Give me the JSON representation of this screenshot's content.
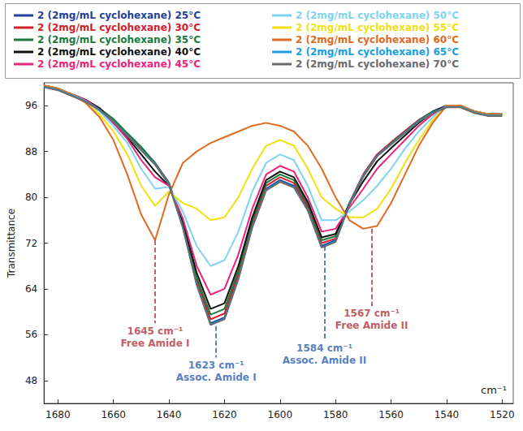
{
  "chart_data": {
    "type": "line",
    "xlabel": "cm⁻¹",
    "ylabel": "Transmittance",
    "x": [
      1685,
      1680,
      1675,
      1670,
      1665,
      1660,
      1655,
      1650,
      1645,
      1640,
      1635,
      1630,
      1625,
      1620,
      1615,
      1610,
      1605,
      1600,
      1595,
      1590,
      1585,
      1580,
      1575,
      1570,
      1565,
      1560,
      1555,
      1550,
      1545,
      1540,
      1535,
      1530,
      1525,
      1520
    ],
    "series": [
      {
        "name": "2 (2mg/mL cyclohexane) 25°C",
        "color": "#1f3f9a",
        "values": [
          99.5,
          99,
          98,
          97,
          95.5,
          93.5,
          91,
          88.5,
          86,
          82.5,
          75,
          65,
          58,
          59,
          66,
          75,
          81.5,
          83,
          82,
          78,
          71.5,
          72.5,
          79,
          84,
          87.5,
          89.5,
          91.5,
          93.5,
          95,
          96,
          96,
          95,
          94.5,
          94.5
        ]
      },
      {
        "name": "2 (2mg/mL cyclohexane) 30°C",
        "color": "#d0202a",
        "values": [
          99.5,
          99,
          98,
          97,
          95.5,
          93.6,
          91.1,
          88.6,
          86,
          82.5,
          75.3,
          65.5,
          58.7,
          59.7,
          66.6,
          75.5,
          82,
          83.5,
          82.5,
          78.4,
          72,
          72.8,
          79,
          84,
          87.5,
          89.6,
          91.6,
          93.5,
          95,
          96,
          96,
          95,
          94.5,
          94.5
        ]
      },
      {
        "name": "2 (2mg/mL cyclohexane) 35°C",
        "color": "#1a7a3a",
        "values": [
          99.5,
          99,
          98,
          97,
          95.5,
          93.7,
          91.2,
          88.8,
          86,
          82.4,
          75.5,
          66,
          59.5,
          60.5,
          67.2,
          76,
          82.5,
          84,
          83,
          78.8,
          72.5,
          73.2,
          79,
          83.6,
          87.2,
          89.4,
          91.4,
          93.4,
          95,
          96,
          96,
          95,
          94.5,
          94.5
        ]
      },
      {
        "name": "2 (2mg/mL cyclohexane) 40°C",
        "color": "#111111",
        "values": [
          99.5,
          99,
          98,
          97,
          95.6,
          93,
          90.5,
          87.5,
          84.5,
          82,
          75.8,
          66.8,
          60.5,
          61.5,
          68,
          76.5,
          83,
          84.5,
          83.5,
          79.2,
          73,
          73.6,
          78.8,
          82.8,
          86.3,
          88.6,
          90.8,
          93,
          94.8,
          96,
          96,
          95,
          94.5,
          94.5
        ]
      },
      {
        "name": "2 (2mg/mL cyclohexane) 45°C",
        "color": "#e8247a",
        "values": [
          99.5,
          99,
          98,
          97,
          95.3,
          93,
          90.2,
          86.5,
          83.5,
          82,
          76.3,
          68,
          63,
          64,
          70,
          78,
          84,
          85.5,
          84.5,
          80,
          74,
          74.5,
          78.2,
          81.5,
          85,
          87.5,
          90,
          92.5,
          94.5,
          96,
          96,
          95,
          94.5,
          94.5
        ]
      },
      {
        "name": "2 (2mg/mL cyclohexane) 50°C",
        "color": "#7fd3f0",
        "values": [
          99.5,
          99,
          98,
          96.8,
          95,
          92.5,
          89.5,
          85,
          81.5,
          81.8,
          77.5,
          71.5,
          68,
          69,
          74,
          81,
          86,
          87.5,
          86.5,
          82,
          76,
          76,
          77.5,
          79.5,
          82,
          85,
          88.5,
          91.5,
          94,
          96,
          96,
          95,
          94.5,
          94.5
        ]
      },
      {
        "name": "2 (2mg/mL cyclohexane) 55°C",
        "color": "#f0e010",
        "values": [
          99.5,
          99,
          98,
          96.5,
          94.5,
          91.5,
          87.5,
          82,
          78.5,
          81,
          79,
          78,
          76,
          76.5,
          80,
          85,
          89,
          90,
          89,
          85,
          80,
          78,
          76.5,
          76.5,
          78,
          81.5,
          86,
          90,
          93.5,
          96,
          96,
          95,
          94.5,
          94.5
        ]
      },
      {
        "name": "2 (2mg/mL cyclohexane) 60°C",
        "color": "#e06a20",
        "values": [
          99.5,
          99,
          98,
          96.5,
          94,
          90,
          84,
          77,
          72.5,
          80.5,
          86,
          88,
          89.5,
          90.5,
          91.5,
          92.5,
          93,
          92.5,
          91.5,
          89,
          85,
          80,
          76,
          74.5,
          75,
          79,
          84,
          89,
          93,
          96,
          96,
          95,
          94.5,
          94.5
        ]
      },
      {
        "name": "2 (2mg/mL cyclohexane) 65°C",
        "color": "#1a9ee0",
        "values": [
          99.3,
          98.8,
          97.8,
          96.8,
          95.3,
          93.3,
          90.8,
          88.3,
          85.8,
          82.3,
          74.8,
          64.8,
          57.8,
          58.8,
          65.8,
          74.8,
          81.3,
          82.8,
          81.8,
          77.8,
          71.3,
          72.3,
          78.8,
          83.8,
          87.3,
          89.3,
          91.3,
          93.3,
          94.8,
          95.8,
          95.8,
          94.8,
          94.3,
          94.3
        ]
      },
      {
        "name": "2 (2mg/mL cyclohexane) 70°C",
        "color": "#6a6a6a",
        "values": [
          99.2,
          98.7,
          97.7,
          96.7,
          95.2,
          93.2,
          90.7,
          88.2,
          85.7,
          82.2,
          74.7,
          64.7,
          57.7,
          58.7,
          65.7,
          74.7,
          81.2,
          82.7,
          81.7,
          77.7,
          71.2,
          72.2,
          78.7,
          83.7,
          87.2,
          89.2,
          91.2,
          93.2,
          94.7,
          95.7,
          95.7,
          94.7,
          94.2,
          94.2
        ]
      }
    ],
    "xlim": [
      1685,
      1516
    ],
    "xticks": [
      1680,
      1660,
      1640,
      1620,
      1600,
      1580,
      1560,
      1540,
      1520
    ],
    "ylim": [
      44,
      100
    ],
    "yticks": [
      48,
      56,
      64,
      72,
      80,
      88,
      96
    ],
    "grid": false,
    "legend": "top",
    "annotations": [
      {
        "x": 1645,
        "y": 72.5,
        "label": "1645 cm⁻¹",
        "text": "Free Amide I",
        "color": "#b0303a"
      },
      {
        "x": 1623,
        "y": 57.5,
        "label": "1623 cm⁻¹",
        "text": "Assoc. Amide I",
        "color": "#2a5db0"
      },
      {
        "x": 1584,
        "y": 71.5,
        "label": "1584 cm⁻¹",
        "text": "Assoc. Amide II",
        "color": "#2a5db0"
      },
      {
        "x": 1567,
        "y": 74.5,
        "label": "1567 cm⁻¹",
        "text": "Free Amide II",
        "color": "#b0303a"
      }
    ]
  }
}
